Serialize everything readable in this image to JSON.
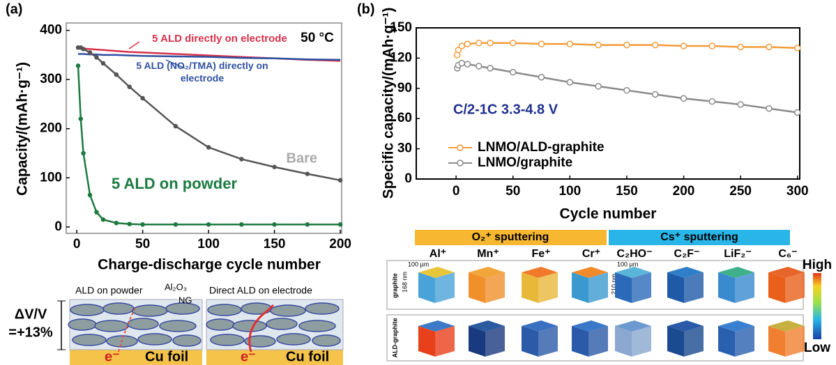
{
  "panels": {
    "a": "(a)",
    "b": "(b)"
  },
  "chart_data": [
    {
      "type": "line",
      "x": [
        1,
        3,
        5,
        10,
        15,
        20,
        30,
        40,
        50,
        75,
        100,
        125,
        150,
        175,
        200
      ],
      "series": [
        {
          "name": "5 ALD directly on electrode",
          "color": "#d8304a",
          "marker": "none",
          "values": [
            365,
            364,
            363,
            362,
            361,
            360,
            358,
            356,
            355,
            352,
            349,
            346,
            343,
            340,
            338
          ]
        },
        {
          "name": "5 ALD (NO₂/TMA) directly on electrode",
          "color": "#2e4fa0",
          "marker": "none",
          "values": [
            352,
            352,
            352,
            351,
            351,
            350,
            350,
            349,
            348,
            347,
            346,
            344,
            343,
            341,
            340
          ]
        },
        {
          "name": "Bare",
          "color": "#555555",
          "marker": "filled",
          "values": [
            365,
            365,
            362,
            355,
            345,
            333,
            310,
            285,
            262,
            205,
            162,
            138,
            122,
            108,
            95
          ]
        },
        {
          "name": "5 ALD on powder",
          "color": "#1b7a40",
          "marker": "filled",
          "values": [
            328,
            220,
            150,
            65,
            30,
            15,
            8,
            6,
            5,
            5,
            5,
            5,
            5,
            5,
            5
          ]
        }
      ],
      "annotations": [
        "50 °C"
      ],
      "xlabel": "Charge-discharge cycle number",
      "ylabel": "Capacity/(mAh·g⁻¹)",
      "xlim": [
        -8,
        201
      ],
      "ylim": [
        -13,
        415
      ],
      "xticks": [
        0,
        50,
        100,
        150,
        200
      ],
      "yticks": [
        0,
        100,
        200,
        300,
        400
      ]
    },
    {
      "type": "line",
      "x": [
        1,
        2,
        5,
        10,
        20,
        30,
        50,
        75,
        100,
        125,
        150,
        175,
        200,
        225,
        250,
        275,
        300
      ],
      "series": [
        {
          "name": "LNMO/ALD-graphite",
          "color": "#f39b3a",
          "marker": "hollow",
          "values": [
            123,
            128,
            132,
            134,
            135,
            135,
            135,
            134,
            134,
            133,
            133,
            133,
            132,
            132,
            131,
            131,
            130
          ]
        },
        {
          "name": "LNMO/graphite",
          "color": "#8a8a8a",
          "marker": "hollow",
          "values": [
            110,
            113,
            115,
            114,
            112,
            110,
            106,
            101,
            96,
            92,
            88,
            84,
            80,
            77,
            74,
            70,
            66
          ]
        }
      ],
      "annotations": [
        "C/2-1C 3.3-4.8 V"
      ],
      "legend": "left",
      "xlabel": "Cycle number",
      "ylabel": "Specific capacity/(mAh·g⁻¹)",
      "xlim": [
        -35,
        302
      ],
      "ylim": [
        0,
        150
      ],
      "xticks": [
        0,
        50,
        100,
        150,
        200,
        250,
        300
      ],
      "yticks": [
        0,
        30,
        60,
        90,
        120,
        150
      ]
    }
  ],
  "schematic": {
    "dv": "ΔV/V",
    "pct": "=+13%",
    "left_title": "ALD on powder",
    "coating": "Al₂O₃",
    "ng": "NG",
    "right_title": "Direct ALD on electrode",
    "electron": "e⁻",
    "foil": "Cu foil"
  },
  "tof_sims": {
    "o2": "O₂⁺ sputtering",
    "cs": "Cs⁺ sputtering",
    "ions": [
      "Al⁺",
      "Mn⁺",
      "Fe⁺",
      "Cr⁺",
      "C₂HO⁻",
      "C₂F⁻",
      "LiF₂⁻",
      "C₆⁻"
    ],
    "rows": [
      "graphite",
      "ALD-graphite"
    ],
    "dim_w": "100 µm",
    "dim_h1": "168 nm",
    "dim_h2": "210 nm",
    "high": "High",
    "low": "Low"
  }
}
